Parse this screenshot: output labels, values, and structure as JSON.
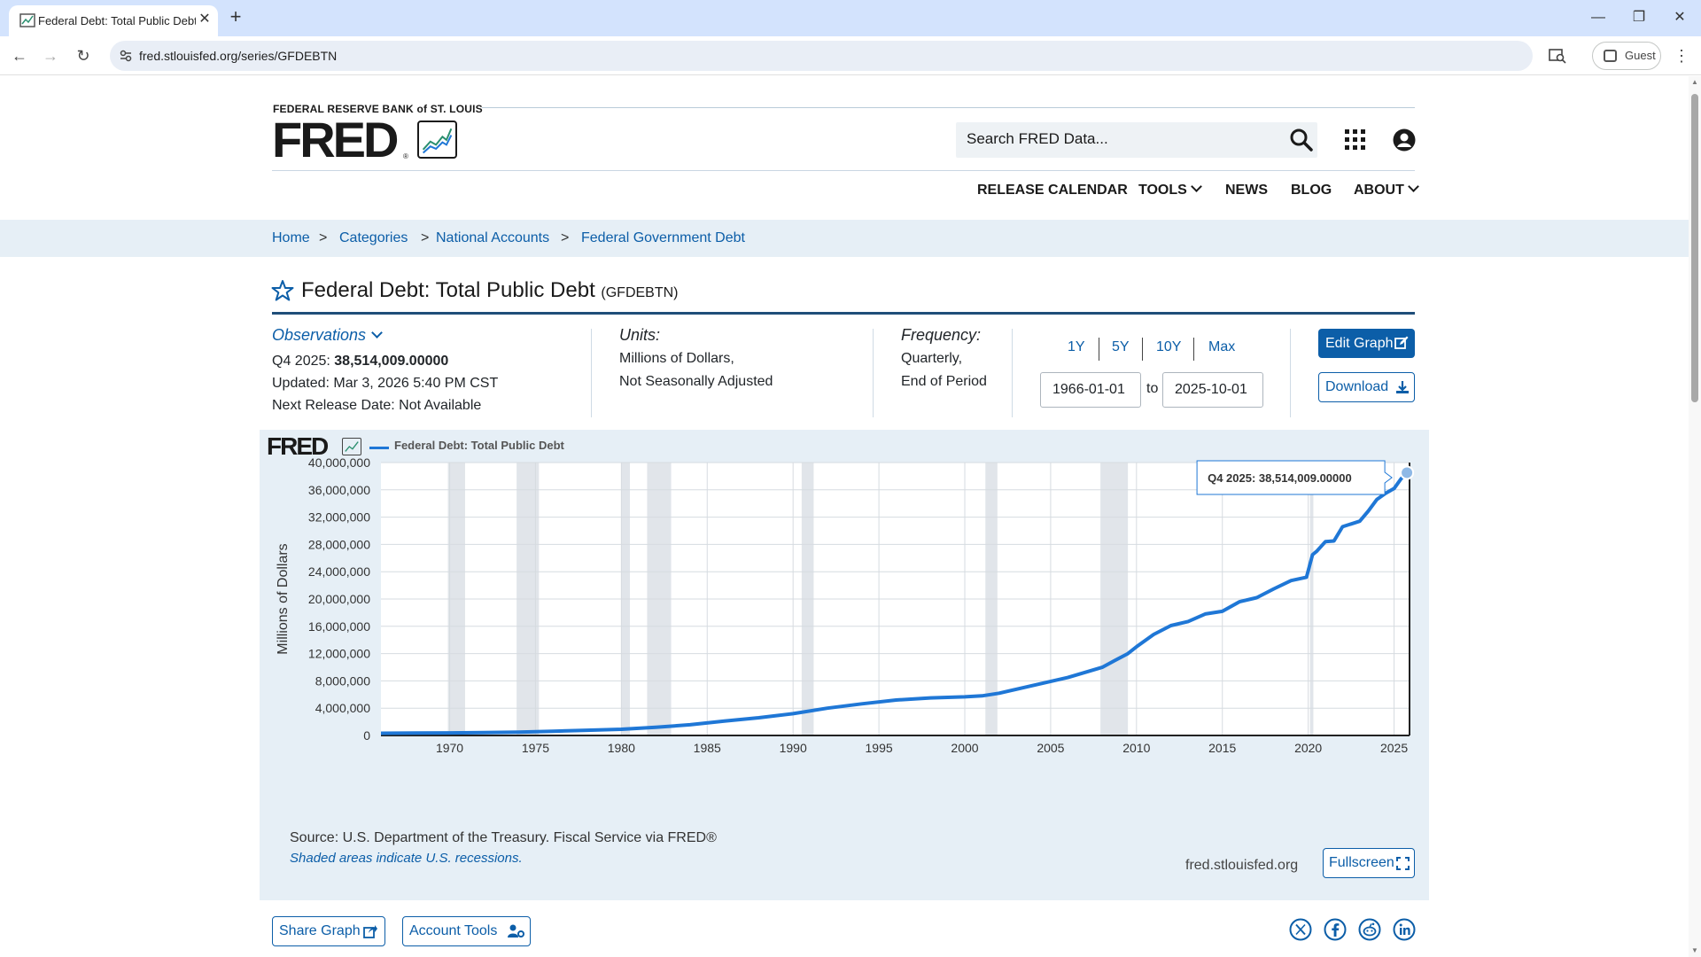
{
  "browser": {
    "tab_title": "Federal Debt: Total Public Debt",
    "url": "fred.stlouisfed.org/series/GFDEBTN",
    "guest_label": "Guest"
  },
  "header": {
    "org_label": "FEDERAL RESERVE BANK of ST. LOUIS",
    "logo_text": "FRED",
    "logo_reg": "®",
    "search_placeholder": "Search FRED Data...",
    "nav": [
      "RELEASE CALENDAR",
      "TOOLS",
      "NEWS",
      "BLOG",
      "ABOUT"
    ]
  },
  "breadcrumb": [
    "Home",
    "Categories",
    "National Accounts",
    "Federal Government Debt"
  ],
  "series": {
    "title": "Federal Debt: Total Public Debt",
    "id": "(GFDEBTN)"
  },
  "observations": {
    "label": "Observations",
    "latest_period": "Q4 2025:",
    "latest_value": "38,514,009.00000",
    "updated": "Updated: Mar 3, 2026 5:40 PM CST",
    "next_release": "Next Release Date: Not Available"
  },
  "units": {
    "label": "Units:",
    "line1": "Millions of Dollars,",
    "line2": "Not Seasonally Adjusted"
  },
  "frequency": {
    "label": "Frequency:",
    "line1": "Quarterly,",
    "line2": "End of Period"
  },
  "range": {
    "buttons": [
      "1Y",
      "5Y",
      "10Y",
      "Max"
    ],
    "start": "1966-01-01",
    "to_label": "to",
    "end": "2025-10-01"
  },
  "actions": {
    "edit": "Edit Graph",
    "download": "Download",
    "share": "Share Graph",
    "account_tools": "Account Tools",
    "fullscreen": "Fullscreen"
  },
  "graph": {
    "logo_text": "FRED",
    "source": "Source: U.S. Department of the Treasury. Fiscal Service via FRED®",
    "recession_note": "Shaded areas indicate U.S. recessions.",
    "site": "fred.stlouisfed.org",
    "tooltip_label": "Q4 2025:",
    "tooltip_value": "38,514,009.00000"
  },
  "colors": {
    "accent": "#0c5ea8",
    "series_line": "#1f77d6",
    "recession_shade": "#e1e5ea"
  },
  "chart_data": {
    "type": "line",
    "title": "",
    "xlabel": "",
    "ylabel": "Millions of Dollars",
    "xlim": [
      1966,
      2025.9
    ],
    "ylim": [
      0,
      40000000
    ],
    "x_ticks": [
      "1970",
      "1975",
      "1980",
      "1985",
      "1990",
      "1995",
      "2000",
      "2005",
      "2010",
      "2015",
      "2020",
      "2025"
    ],
    "y_ticks": [
      "0",
      "4,000,000",
      "8,000,000",
      "12,000,000",
      "16,000,000",
      "20,000,000",
      "24,000,000",
      "28,000,000",
      "32,000,000",
      "36,000,000",
      "40,000,000"
    ],
    "grid": true,
    "legend_position": "top-left",
    "recessions": [
      [
        1969.9,
        1970.9
      ],
      [
        1973.9,
        1975.2
      ],
      [
        1980.0,
        1980.5
      ],
      [
        1981.5,
        1982.9
      ],
      [
        1990.5,
        1991.2
      ],
      [
        2001.2,
        2001.9
      ],
      [
        2007.9,
        2009.5
      ],
      [
        2020.1,
        2020.3
      ]
    ],
    "series": [
      {
        "name": "Federal Debt: Total Public Debt",
        "x": [
          1966,
          1968,
          1970,
          1972,
          1974,
          1976,
          1978,
          1980,
          1982,
          1984,
          1986,
          1988,
          1990,
          1992,
          1994,
          1996,
          1998,
          2000,
          2001,
          2002,
          2004,
          2006,
          2008,
          2008.75,
          2009.5,
          2010,
          2011,
          2012,
          2013,
          2014,
          2015,
          2016,
          2017,
          2018,
          2019,
          2019.9,
          2020.25,
          2020.5,
          2021,
          2021.5,
          2022,
          2022.5,
          2023,
          2023.5,
          2024,
          2024.5,
          2025,
          2025.4,
          2025.75
        ],
        "y": [
          320000,
          345000,
          380000,
          430000,
          480000,
          620000,
          770000,
          910000,
          1200000,
          1570000,
          2120000,
          2600000,
          3200000,
          4000000,
          4640000,
          5200000,
          5500000,
          5660000,
          5800000,
          6200000,
          7350000,
          8500000,
          9990000,
          11000000,
          12000000,
          13000000,
          14800000,
          16100000,
          16700000,
          17800000,
          18200000,
          19600000,
          20200000,
          21500000,
          22700000,
          23200000,
          26500000,
          27000000,
          28400000,
          28500000,
          30600000,
          31000000,
          31400000,
          32900000,
          34600000,
          35500000,
          36200000,
          37600000,
          38514009
        ]
      }
    ]
  }
}
